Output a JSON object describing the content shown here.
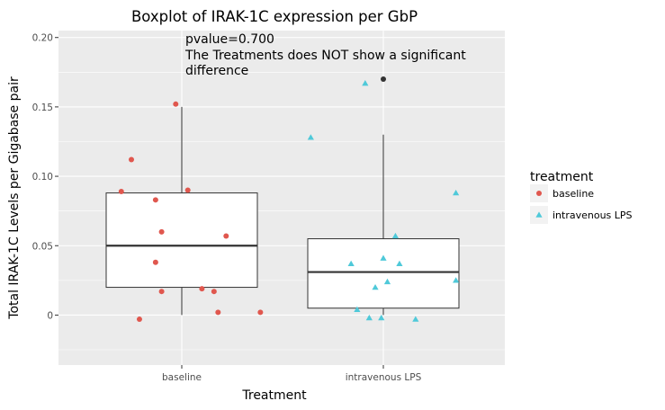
{
  "chart_data": {
    "type": "boxplot",
    "title": "Boxplot of IRAK-1C expression per  GbP",
    "xlabel": "Treatment",
    "ylabel": "Total IRAK-1C Levels per Gigabase pair",
    "ylim": [
      -0.036,
      0.205
    ],
    "yticks": [
      0,
      0.05,
      0.1,
      0.15,
      0.2
    ],
    "ytick_labels": [
      "0",
      "0.05",
      "0.10",
      "0.15",
      "0.20"
    ],
    "categories": [
      "baseline",
      "intravenous LPS"
    ],
    "grid": true,
    "legend": {
      "title": "treatment",
      "position": "right",
      "entries": [
        {
          "label": "baseline",
          "color": "#e0574e",
          "shape": "circle"
        },
        {
          "label": "intravenous LPS",
          "color": "#4fc9d9",
          "shape": "triangle"
        }
      ]
    },
    "annotation": {
      "lines": [
        "pvalue=0.700",
        "The Treatments does NOT show a significant",
        "difference"
      ]
    },
    "boxes": [
      {
        "category": "baseline",
        "whisker_low": 0.0,
        "q1": 0.02,
        "median": 0.05,
        "q3": 0.088,
        "whisker_high": 0.15,
        "outliers": []
      },
      {
        "category": "intravenous LPS",
        "whisker_low": 0.0,
        "q1": 0.005,
        "median": 0.031,
        "q3": 0.055,
        "whisker_high": 0.13,
        "outliers": [
          0.17
        ]
      }
    ],
    "points": [
      {
        "series": "baseline",
        "x": 0.97,
        "y": 0.152
      },
      {
        "series": "baseline",
        "x": 0.75,
        "y": 0.112
      },
      {
        "series": "baseline",
        "x": 0.7,
        "y": 0.089
      },
      {
        "series": "baseline",
        "x": 1.03,
        "y": 0.09
      },
      {
        "series": "baseline",
        "x": 0.87,
        "y": 0.083
      },
      {
        "series": "baseline",
        "x": 0.9,
        "y": 0.06
      },
      {
        "series": "baseline",
        "x": 1.22,
        "y": 0.057
      },
      {
        "series": "baseline",
        "x": 0.87,
        "y": 0.038
      },
      {
        "series": "baseline",
        "x": 0.9,
        "y": 0.017
      },
      {
        "series": "baseline",
        "x": 1.1,
        "y": 0.019
      },
      {
        "series": "baseline",
        "x": 1.16,
        "y": 0.017
      },
      {
        "series": "baseline",
        "x": 1.18,
        "y": 0.002
      },
      {
        "series": "baseline",
        "x": 1.39,
        "y": 0.002
      },
      {
        "series": "baseline",
        "x": 0.79,
        "y": -0.003
      },
      {
        "series": "intravenous LPS",
        "x": 1.64,
        "y": 0.128
      },
      {
        "series": "intravenous LPS",
        "x": 1.91,
        "y": 0.167
      },
      {
        "series": "intravenous LPS",
        "x": 2.36,
        "y": 0.088
      },
      {
        "series": "intravenous LPS",
        "x": 2.06,
        "y": 0.057
      },
      {
        "series": "intravenous LPS",
        "x": 1.84,
        "y": 0.037
      },
      {
        "series": "intravenous LPS",
        "x": 2.0,
        "y": 0.041
      },
      {
        "series": "intravenous LPS",
        "x": 2.08,
        "y": 0.037
      },
      {
        "series": "intravenous LPS",
        "x": 2.36,
        "y": 0.025
      },
      {
        "series": "intravenous LPS",
        "x": 2.02,
        "y": 0.024
      },
      {
        "series": "intravenous LPS",
        "x": 1.96,
        "y": 0.02
      },
      {
        "series": "intravenous LPS",
        "x": 1.87,
        "y": 0.004
      },
      {
        "series": "intravenous LPS",
        "x": 1.93,
        "y": -0.002
      },
      {
        "series": "intravenous LPS",
        "x": 1.99,
        "y": -0.002
      },
      {
        "series": "intravenous LPS",
        "x": 2.16,
        "y": -0.003
      }
    ]
  }
}
